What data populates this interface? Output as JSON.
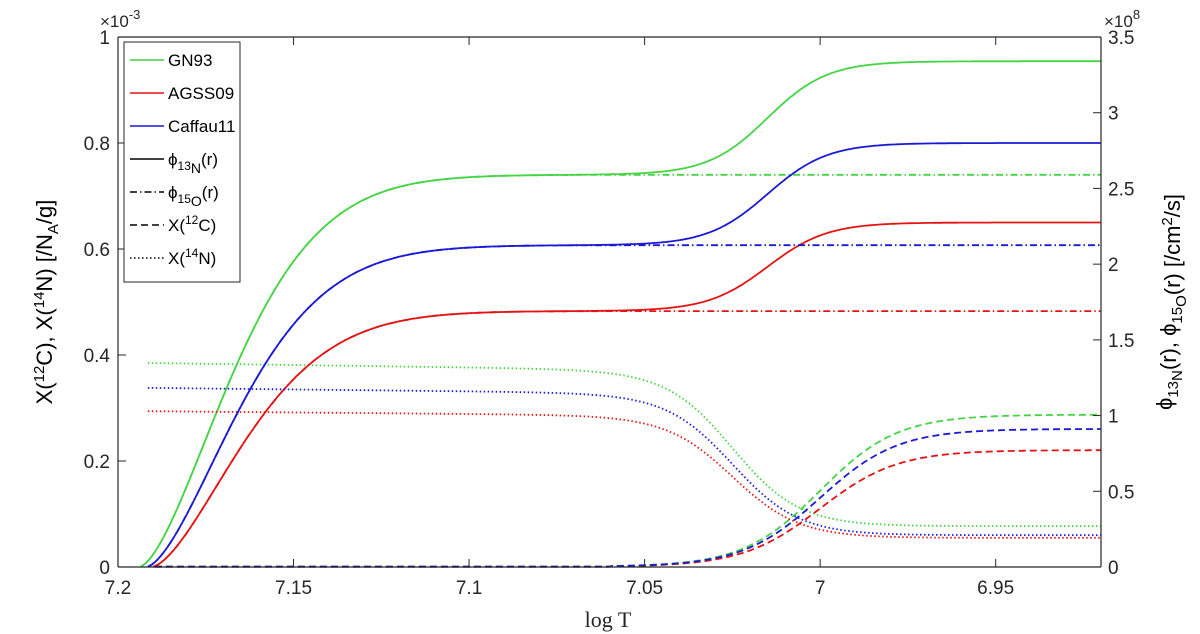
{
  "chart_data": {
    "type": "line",
    "xlabel": "log T",
    "xlim": [
      7.2,
      6.92
    ],
    "x_reversed": true,
    "x_ticks": [
      7.2,
      7.15,
      7.1,
      7.05,
      7.0,
      6.95
    ],
    "x_tick_labels": [
      "7.2",
      "7.15",
      "7.1",
      "7.05",
      "7",
      "6.95"
    ],
    "ylabel_left_parts": [
      "X(",
      "12",
      "C), X(",
      "14",
      "N) [/N",
      "A",
      "/g]"
    ],
    "ylabel_right_parts": [
      "ϕ",
      "13",
      "N",
      "(r),  ϕ",
      "15",
      "O",
      "(r) [/cm",
      "2",
      "/s]"
    ],
    "ylim_left": [
      0,
      1
    ],
    "left_scale_base": "×10",
    "left_scale_exp": "-3",
    "y_left_ticks": [
      0,
      0.2,
      0.4,
      0.6,
      0.8,
      1
    ],
    "y_left_tick_labels": [
      "0",
      "0.2",
      "0.4",
      "0.6",
      "0.8",
      "1"
    ],
    "ylim_right": [
      0,
      3.5
    ],
    "right_scale_base": "×10",
    "right_scale_exp": "8",
    "y_right_ticks": [
      0,
      0.5,
      1,
      1.5,
      2,
      2.5,
      3,
      3.5
    ],
    "y_right_tick_labels": [
      "0",
      "0.5",
      "1",
      "1.5",
      "2",
      "2.5",
      "3",
      "3.5"
    ],
    "grid": false,
    "legend_position": "top-left",
    "legend": [
      {
        "label": "GN93",
        "color": "#44d444",
        "style": "solid"
      },
      {
        "label": "AGSS09",
        "color": "#e51414",
        "style": "solid"
      },
      {
        "label": "Caffau11",
        "color": "#1a1ad6",
        "style": "solid"
      },
      {
        "label_parts": [
          "ϕ",
          "13",
          "N",
          "(r)"
        ],
        "color": "#000000",
        "style": "solid"
      },
      {
        "label_parts": [
          "ϕ",
          "15",
          "O",
          "(r)"
        ],
        "color": "#000000",
        "style": "dashdot"
      },
      {
        "label_parts": [
          "X(",
          "12",
          "C)"
        ],
        "color": "#000000",
        "style": "dashed"
      },
      {
        "label_parts": [
          "X(",
          "14",
          "N)"
        ],
        "color": "#000000",
        "style": "dotted"
      }
    ],
    "models": [
      {
        "name": "GN93",
        "color": "#44d444",
        "phi13N_plateau": 2.59,
        "phi13N_final": 3.34,
        "phi15O_plateau": 2.59,
        "C12_final": 0.287,
        "N14_start": 0.385,
        "N14_plateau": 0.372,
        "N14_final": 0.077
      },
      {
        "name": "AGSS09",
        "color": "#e51414",
        "phi13N_plateau": 1.69,
        "phi13N_final": 2.275,
        "phi15O_plateau": 1.69,
        "C12_final": 0.22,
        "N14_start": 0.294,
        "N14_plateau": 0.286,
        "N14_final": 0.055
      },
      {
        "name": "Caffau11",
        "color": "#1a1ad6",
        "phi13N_plateau": 2.125,
        "phi13N_final": 2.8,
        "phi15O_plateau": 2.125,
        "C12_final": 0.26,
        "N14_start": 0.338,
        "N14_plateau": 0.328,
        "N14_final": 0.06
      }
    ]
  }
}
